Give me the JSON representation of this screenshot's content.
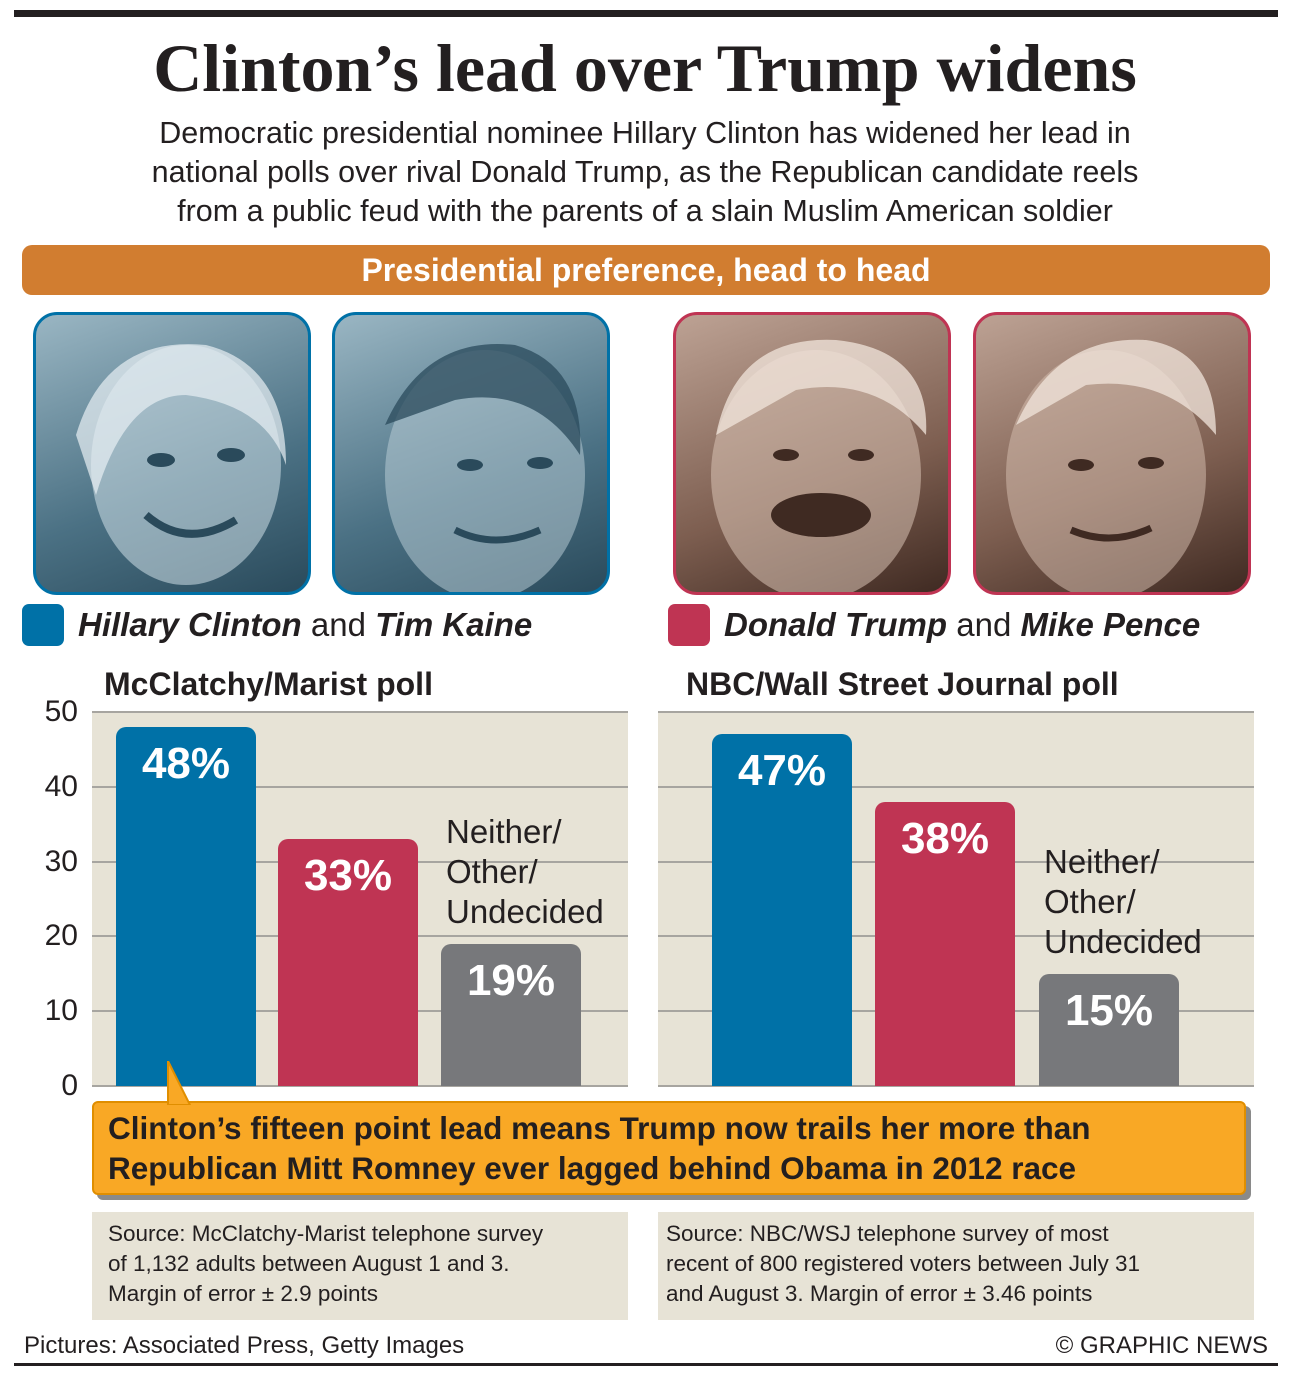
{
  "title": "Clinton’s lead over Trump widens",
  "subtitle_lines": [
    "Democratic presidential nominee Hillary Clinton has widened her lead in",
    "national polls over rival Donald Trump, as the Republican candidate reels",
    "from a public feud with the parents of a slain Muslim American soldier"
  ],
  "section_banner": "Presidential preference, head to head",
  "legend": {
    "democrat": {
      "name1": "Hillary Clinton",
      "joiner": "and",
      "name2": "Tim Kaine",
      "color": "#0071a7"
    },
    "republican": {
      "name1": "Donald Trump",
      "joiner": "and",
      "name2": "Mike Pence",
      "color": "#bf3453"
    }
  },
  "chart_data": [
    {
      "type": "bar",
      "title": "McClatchy/Marist poll",
      "categories": [
        "Hillary Clinton and Tim Kaine",
        "Donald Trump and Mike Pence",
        "Neither/ Other/ Undecided"
      ],
      "values": [
        48,
        33,
        19
      ],
      "data_labels": [
        "48%",
        "33%",
        "19%"
      ],
      "category_label": "Neither/\nOther/\nUndecided",
      "colors": [
        "#0071a7",
        "#bf3453",
        "#77787b"
      ],
      "ylim": [
        0,
        50
      ],
      "yticks": [
        0,
        10,
        20,
        30,
        40,
        50
      ],
      "ylabel": "",
      "grid": true
    },
    {
      "type": "bar",
      "title": "NBC/Wall Street Journal poll",
      "categories": [
        "Hillary Clinton and Tim Kaine",
        "Donald Trump and Mike Pence",
        "Neither/ Other/ Undecided"
      ],
      "values": [
        47,
        38,
        15
      ],
      "data_labels": [
        "47%",
        "38%",
        "15%"
      ],
      "category_label": "Neither/\nOther/\nUndecided",
      "colors": [
        "#0071a7",
        "#bf3453",
        "#77787b"
      ],
      "ylim": [
        0,
        50
      ],
      "yticks": [
        0,
        10,
        20,
        30,
        40,
        50
      ],
      "ylabel": "",
      "grid": true
    }
  ],
  "callout_lines": [
    "Clinton’s fifteen point lead means Trump now trails her more than",
    "Republican Mitt Romney ever lagged behind Obama in 2012 race"
  ],
  "sources": [
    [
      "Source: McClatchy-Marist telephone survey",
      "of 1,132 adults between August 1 and 3.",
      "Margin of error ± 2.9 points"
    ],
    [
      "Source: NBC/WSJ telephone survey of most",
      "recent of 800 registered voters between July 31",
      "and August 3. Margin of error ± 3.46 points"
    ]
  ],
  "footer": {
    "credits": "Pictures: Associated Press, Getty Images",
    "copyright": "© GRAPHIC NEWS"
  }
}
